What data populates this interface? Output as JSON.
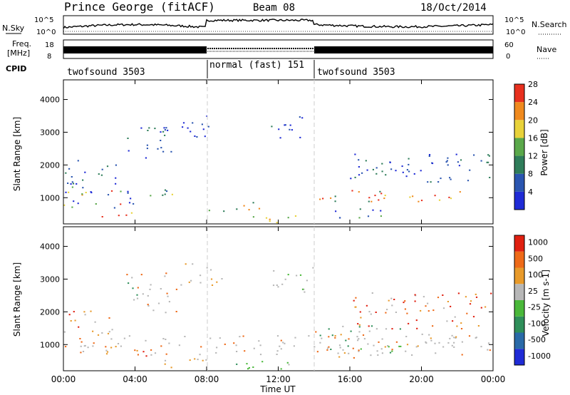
{
  "header": {
    "title": "Prince George (fitACF)",
    "beam": "Beam 08",
    "date": "18/Oct/2014"
  },
  "noise_panel": {
    "left_label": "N.Sky",
    "right_label": "N.Search",
    "left_ticks": [
      "10^5",
      "10^0"
    ],
    "right_ticks": [
      "10^5",
      "10^0"
    ]
  },
  "freq_panel": {
    "left_label_1": "Freq.",
    "left_label_2": "[MHz]",
    "right_label": "Nave",
    "left_ticks": [
      "18",
      "8"
    ],
    "right_ticks": [
      "60",
      "0"
    ]
  },
  "cpid_panel": {
    "label": "CPID",
    "segments": [
      {
        "name": "twofsound 3503",
        "start_hour": 0,
        "end_hour": 8
      },
      {
        "name": "normal (fast) 151",
        "start_hour": 8,
        "end_hour": 14
      },
      {
        "name": "twofsound 3503",
        "start_hour": 14,
        "end_hour": 24
      }
    ]
  },
  "x_axis": {
    "label": "Time UT",
    "ticks": [
      "00:00",
      "04:00",
      "08:00",
      "12:00",
      "16:00",
      "20:00",
      "00:00"
    ]
  },
  "chart_data": [
    {
      "type": "heatmap",
      "name": "power",
      "ylabel": "Slant Range [km]",
      "yticks": [
        "1000",
        "2000",
        "3000",
        "4000"
      ],
      "ylim": [
        200,
        4600
      ],
      "xlim_hours": [
        0,
        24
      ],
      "colorbar_label": "Power [dB]",
      "colorbar_ticks": [
        "4",
        "8",
        "12",
        "16",
        "20",
        "24",
        "28"
      ],
      "colors": [
        "#1f2bd6",
        "#2a55b0",
        "#2f7d5a",
        "#5aa84a",
        "#e8d23a",
        "#f08a1e",
        "#e8301e"
      ]
    },
    {
      "type": "heatmap",
      "name": "velocity",
      "ylabel": "Slant Range [km]",
      "yticks": [
        "1000",
        "2000",
        "3000",
        "4000"
      ],
      "ylim": [
        200,
        4600
      ],
      "xlim_hours": [
        0,
        24
      ],
      "colorbar_label": "Velocity [m s-1]",
      "colorbar_ticks": [
        "1000",
        "500",
        "100",
        "25",
        "-25",
        "-100",
        "-500",
        "-1000"
      ],
      "colors": [
        "#1f2bd6",
        "#2a6aa8",
        "#2f8f5a",
        "#4ab83a",
        "#b7b7b7",
        "#e89a2a",
        "#ee6a18",
        "#e02010"
      ]
    }
  ]
}
